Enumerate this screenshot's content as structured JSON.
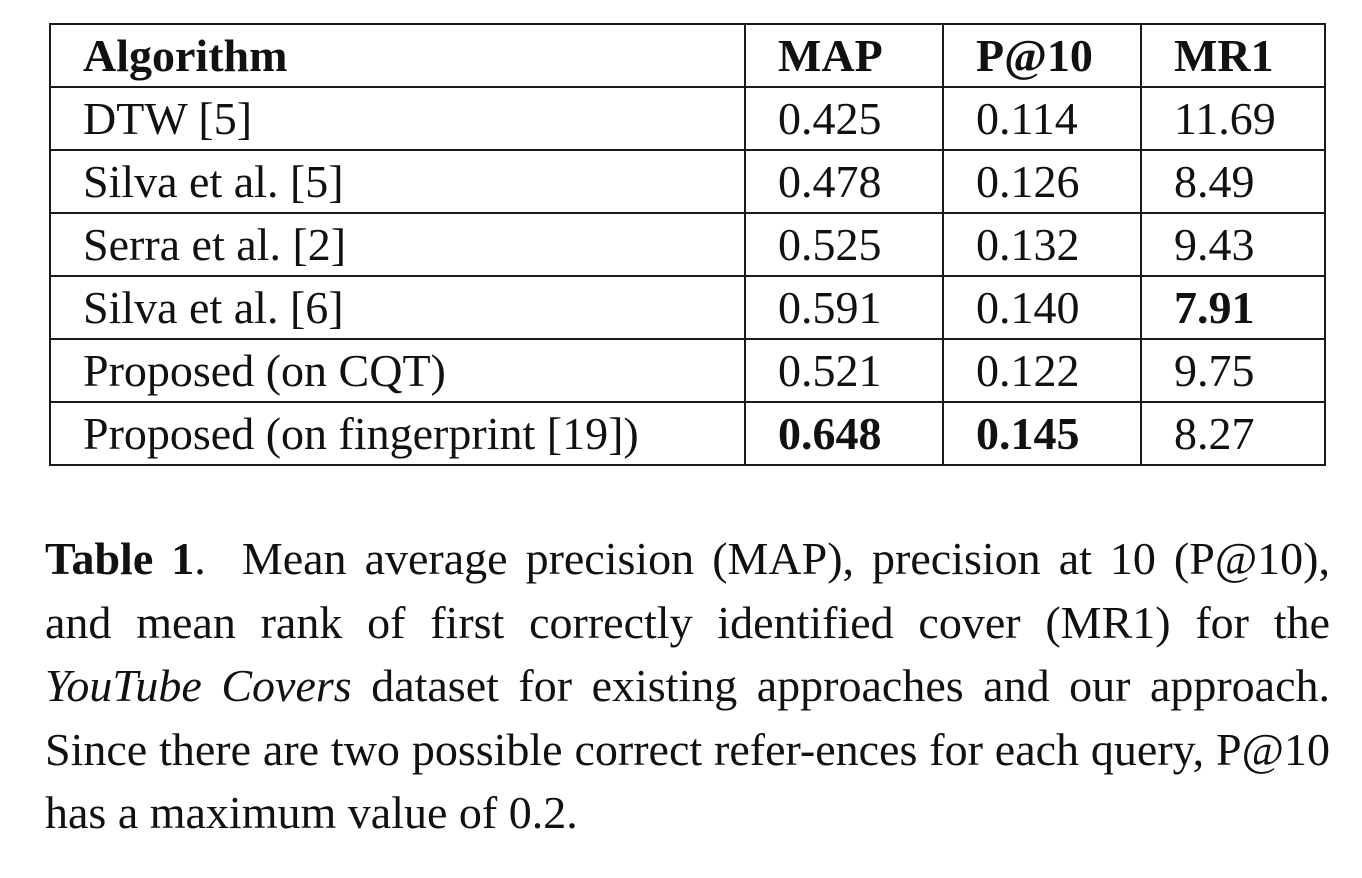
{
  "table": {
    "headers": [
      "Algorithm",
      "MAP",
      "P@10",
      "MR1"
    ],
    "rows": [
      {
        "algorithm": "DTW [5]",
        "map": "0.425",
        "p10": "0.114",
        "mr1": "11.69"
      },
      {
        "algorithm": "Silva et al. [5]",
        "map": "0.478",
        "p10": "0.126",
        "mr1": "8.49"
      },
      {
        "algorithm": "Serra et al. [2]",
        "map": "0.525",
        "p10": "0.132",
        "mr1": "9.43"
      },
      {
        "algorithm": "Silva et al. [6]",
        "map": "0.591",
        "p10": "0.140",
        "mr1": "7.91"
      },
      {
        "algorithm": "Proposed (on CQT)",
        "map": "0.521",
        "p10": "0.122",
        "mr1": "9.75"
      },
      {
        "algorithm": "Proposed (on fingerprint [19])",
        "map": "0.648",
        "p10": "0.145",
        "mr1": "8.27"
      }
    ],
    "bold_cells": [
      "3.mr1",
      "5.map",
      "5.p10"
    ]
  },
  "caption": {
    "label": "Table 1",
    "separator": ".",
    "text_before_italic": "Mean average precision (MAP), precision at 10 (P@10), and mean rank of first correctly identified cover (MR1) for the ",
    "italic": "YouTube Covers",
    "text_after_italic": " dataset for existing approaches and our approach. Since there are two possible correct refer-ences for each query, P@10 has a maximum value of 0.2."
  }
}
